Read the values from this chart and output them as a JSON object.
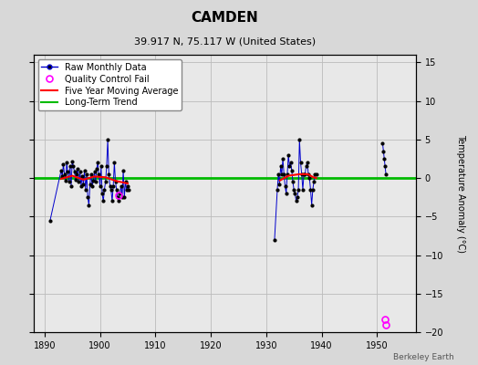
{
  "title": "CAMDEN",
  "subtitle": "39.917 N, 75.117 W (United States)",
  "ylabel": "Temperature Anomaly (°C)",
  "credit": "Berkeley Earth",
  "background_color": "#d8d8d8",
  "plot_bg_color": "#e8e8e8",
  "xlim": [
    1888,
    1957
  ],
  "ylim": [
    -20,
    16
  ],
  "yticks": [
    -20,
    -15,
    -10,
    -5,
    0,
    5,
    10,
    15
  ],
  "xticks": [
    1890,
    1900,
    1910,
    1920,
    1930,
    1940,
    1950
  ],
  "grid_color": "#bbbbbb",
  "raw_line_color": "#0000cc",
  "raw_dot_color": "#000000",
  "ma_color": "#ff0000",
  "trend_color": "#00bb00",
  "qc_fail_color": "#ff00ff",
  "title_fontsize": 11,
  "subtitle_fontsize": 8,
  "ylabel_fontsize": 7,
  "tick_fontsize": 7,
  "legend_fontsize": 7,
  "segment1": {
    "points": [
      [
        1891.0,
        -5.5
      ],
      [
        1893.0,
        1.0
      ],
      [
        1893.2,
        0.2
      ],
      [
        1893.4,
        1.8
      ],
      [
        1893.6,
        0.5
      ],
      [
        1893.8,
        -0.3
      ],
      [
        1894.0,
        2.0
      ],
      [
        1894.2,
        0.8
      ],
      [
        1894.4,
        -0.5
      ],
      [
        1894.6,
        1.5
      ],
      [
        1894.8,
        -1.0
      ],
      [
        1895.0,
        2.2
      ],
      [
        1895.2,
        1.5
      ],
      [
        1895.4,
        0.8
      ],
      [
        1895.6,
        -0.2
      ],
      [
        1895.8,
        0.5
      ],
      [
        1896.0,
        1.2
      ],
      [
        1896.2,
        -0.5
      ],
      [
        1896.4,
        0.8
      ],
      [
        1896.6,
        -1.0
      ],
      [
        1896.8,
        0.3
      ],
      [
        1897.0,
        -0.8
      ],
      [
        1897.2,
        1.0
      ],
      [
        1897.4,
        -1.5
      ],
      [
        1897.6,
        0.5
      ],
      [
        1897.8,
        -2.5
      ],
      [
        1898.0,
        -3.5
      ],
      [
        1898.2,
        -0.8
      ],
      [
        1898.4,
        0.5
      ],
      [
        1898.6,
        -1.0
      ],
      [
        1898.8,
        -0.3
      ],
      [
        1899.0,
        0.8
      ],
      [
        1899.2,
        -0.5
      ],
      [
        1899.4,
        1.2
      ],
      [
        1899.6,
        2.0
      ],
      [
        1899.8,
        0.5
      ],
      [
        1900.0,
        -1.0
      ],
      [
        1900.2,
        1.5
      ],
      [
        1900.4,
        -2.0
      ],
      [
        1900.6,
        -3.0
      ],
      [
        1900.8,
        -1.5
      ],
      [
        1901.0,
        -0.5
      ],
      [
        1901.2,
        1.5
      ],
      [
        1901.4,
        5.0
      ],
      [
        1901.6,
        0.5
      ],
      [
        1901.8,
        -1.0
      ],
      [
        1902.0,
        -1.5
      ],
      [
        1902.2,
        -3.0
      ],
      [
        1902.4,
        -1.0
      ],
      [
        1902.6,
        2.0
      ],
      [
        1902.8,
        -0.5
      ],
      [
        1903.0,
        -1.5
      ],
      [
        1903.2,
        -2.5
      ],
      [
        1903.4,
        -3.0
      ],
      [
        1903.6,
        -2.0
      ],
      [
        1903.8,
        -1.0
      ],
      [
        1904.0,
        -2.5
      ],
      [
        1904.2,
        1.0
      ],
      [
        1904.4,
        -2.5
      ],
      [
        1904.6,
        -0.5
      ],
      [
        1904.8,
        -1.5
      ],
      [
        1905.0,
        -1.0
      ],
      [
        1905.2,
        -1.5
      ]
    ]
  },
  "segment2": {
    "points": [
      [
        1931.5,
        -8.0
      ],
      [
        1932.0,
        -1.5
      ],
      [
        1932.2,
        0.5
      ],
      [
        1932.4,
        -0.8
      ],
      [
        1932.6,
        1.5
      ],
      [
        1932.8,
        0.5
      ],
      [
        1933.0,
        2.5
      ],
      [
        1933.2,
        0.5
      ],
      [
        1933.4,
        -1.0
      ],
      [
        1933.6,
        -2.0
      ],
      [
        1933.8,
        0.5
      ],
      [
        1934.0,
        3.0
      ],
      [
        1934.2,
        1.5
      ],
      [
        1934.4,
        2.0
      ],
      [
        1934.6,
        1.0
      ],
      [
        1934.8,
        -0.5
      ],
      [
        1935.0,
        -1.5
      ],
      [
        1935.2,
        -2.0
      ],
      [
        1935.4,
        -3.0
      ],
      [
        1935.6,
        -2.5
      ],
      [
        1935.8,
        -1.5
      ],
      [
        1936.0,
        5.0
      ],
      [
        1936.2,
        2.0
      ],
      [
        1936.4,
        0.5
      ],
      [
        1936.6,
        -1.5
      ],
      [
        1936.8,
        0.5
      ],
      [
        1937.0,
        0.5
      ],
      [
        1937.2,
        1.5
      ],
      [
        1937.4,
        2.0
      ],
      [
        1937.6,
        0.5
      ],
      [
        1937.8,
        0.0
      ],
      [
        1938.0,
        -1.5
      ],
      [
        1938.2,
        -3.5
      ],
      [
        1938.4,
        -1.5
      ],
      [
        1938.6,
        -0.5
      ],
      [
        1938.8,
        0.5
      ],
      [
        1939.0,
        0.5
      ]
    ]
  },
  "segment3": {
    "points": [
      [
        1951.0,
        4.5
      ],
      [
        1951.15,
        3.5
      ],
      [
        1951.3,
        2.5
      ],
      [
        1951.45,
        1.5
      ],
      [
        1951.6,
        0.5
      ]
    ]
  },
  "ma_segment1": {
    "points": [
      [
        1893.0,
        -0.1
      ],
      [
        1895.0,
        0.3
      ],
      [
        1897.0,
        -0.2
      ],
      [
        1899.0,
        0.2
      ],
      [
        1901.0,
        0.1
      ],
      [
        1903.0,
        -0.4
      ],
      [
        1905.0,
        -0.7
      ]
    ]
  },
  "ma_segment2": {
    "points": [
      [
        1932.5,
        -0.3
      ],
      [
        1934.0,
        0.3
      ],
      [
        1936.0,
        0.5
      ],
      [
        1937.5,
        0.5
      ],
      [
        1938.5,
        0.1
      ],
      [
        1939.0,
        0.0
      ]
    ]
  },
  "qc_fail_points": [
    [
      1903.4,
      -2.2
    ],
    [
      1951.5,
      -18.3
    ],
    [
      1951.65,
      -19.0
    ]
  ],
  "isolated_dot": [
    1891.0,
    -5.5
  ]
}
